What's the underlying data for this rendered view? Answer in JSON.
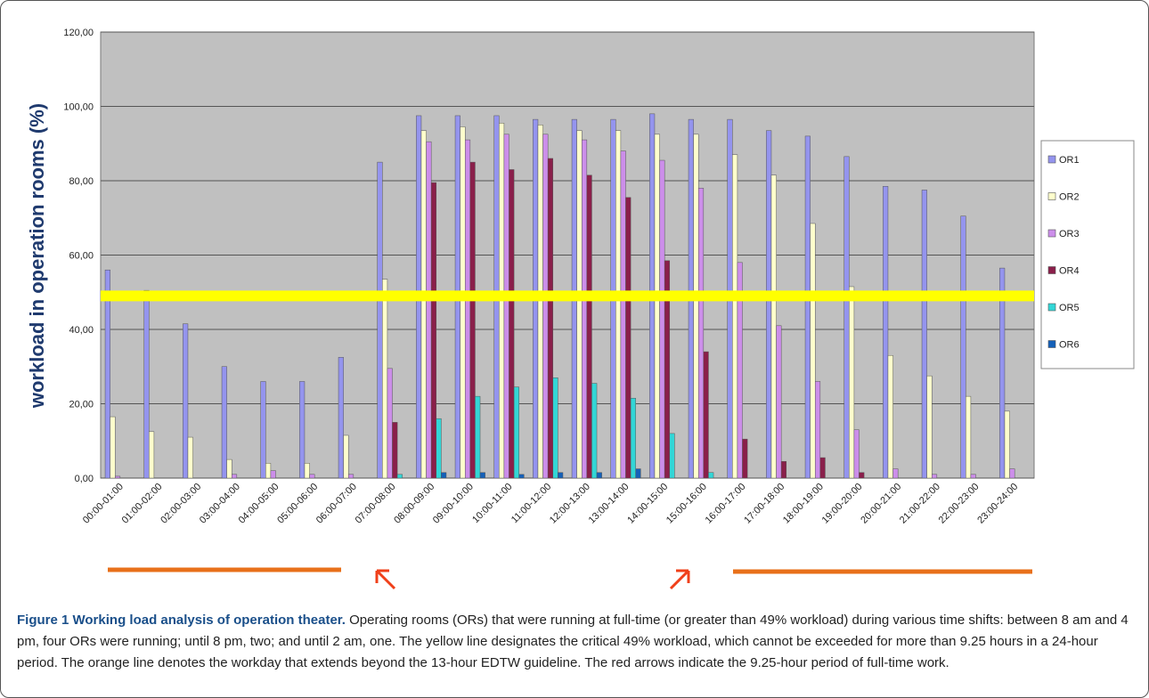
{
  "chart_data": {
    "type": "bar",
    "y_label": "workload in operation rooms (%)",
    "categories": [
      "00:00-01:00",
      "01:00-02:00",
      "02:00-03:00",
      "03:00-04:00",
      "04:00-05:00",
      "05:00-06:00",
      "06:00-07:00",
      "07:00-08:00",
      "08:00-09:00",
      "09:00-10:00",
      "10:00-11:00",
      "11:00-12:00",
      "12:00-13:00",
      "13:00-14:00",
      "14:00-15:00",
      "15:00-16:00",
      "16:00-17:00",
      "17:00-18:00",
      "18:00-19:00",
      "19:00-20:00",
      "20:00-21:00",
      "21:00-22:00",
      "22:00-23:00",
      "23:00-24:00"
    ],
    "series": [
      {
        "name": "OR1",
        "color": "#9494ee",
        "values": [
          56,
          50.5,
          41.5,
          30,
          26,
          26,
          32.5,
          85,
          97.5,
          97.5,
          97.5,
          96.5,
          96.5,
          96.5,
          98,
          96.5,
          96.5,
          93.5,
          92,
          86.5,
          78.5,
          77.5,
          70.5,
          56.5
        ]
      },
      {
        "name": "OR2",
        "color": "#ffffcc",
        "values": [
          16.5,
          12.5,
          11,
          5,
          4,
          4,
          11.5,
          53.5,
          93.5,
          94.5,
          95.5,
          95,
          93.5,
          93.5,
          92.5,
          92.5,
          87,
          81.5,
          68.5,
          51.5,
          33,
          27.5,
          22,
          18
        ]
      },
      {
        "name": "OR3",
        "color": "#cc8eea",
        "values": [
          0.5,
          0,
          0,
          1,
          2,
          1,
          1,
          29.5,
          90.5,
          91,
          92.5,
          92.5,
          91,
          88,
          85.5,
          78,
          58,
          41,
          26,
          13,
          2.5,
          1,
          1,
          2.5
        ]
      },
      {
        "name": "OR4",
        "color": "#8a1f4a",
        "values": [
          0,
          0,
          0,
          0,
          0,
          0,
          0,
          15,
          79.5,
          85,
          83,
          86,
          81.5,
          75.5,
          58.5,
          34,
          10.5,
          4.5,
          5.5,
          1.5,
          0,
          0,
          0,
          0
        ]
      },
      {
        "name": "OR5",
        "color": "#33d6d6",
        "values": [
          0,
          0,
          0,
          0,
          0,
          0,
          0,
          1,
          16,
          22,
          24.5,
          27,
          25.5,
          21.5,
          12,
          1.5,
          0,
          0,
          0,
          0,
          0,
          0,
          0,
          0
        ]
      },
      {
        "name": "OR6",
        "color": "#1560b8",
        "values": [
          0,
          0,
          0,
          0,
          0,
          0,
          0,
          0,
          1.5,
          1.5,
          1,
          1.5,
          1.5,
          2.5,
          0,
          0,
          0,
          0,
          0,
          0,
          0,
          0,
          0,
          0
        ]
      }
    ],
    "threshold": 49,
    "threshold_color": "#ffff00",
    "ylim": [
      0,
      120
    ],
    "yticks": [
      {
        "value": 0,
        "label": "0,00"
      },
      {
        "value": 20,
        "label": "20,00"
      },
      {
        "value": 40,
        "label": "40,00"
      },
      {
        "value": 60,
        "label": "60,00"
      },
      {
        "value": 80,
        "label": "80,00"
      },
      {
        "value": 100,
        "label": "100,00"
      },
      {
        "value": 120,
        "label": "120,00"
      }
    ],
    "grid": true,
    "legend": "right"
  },
  "caption": {
    "label": "Figure 1 Working load analysis of operation theater.",
    "text": "Operating rooms (ORs) that were running at full-time (or greater than 49% workload) during various time shifts: between 8 am and 4 pm, four ORs were running; until 8 pm, two; and until 2 am, one. The yellow line designates the critical 49% workload, which cannot be exceeded for more than 9.25 hours in a 24-hour period. The orange line denotes the workday that extends beyond the 13-hour EDTW guideline. The red arrows indicate the 9.25-hour period of full-time work."
  }
}
